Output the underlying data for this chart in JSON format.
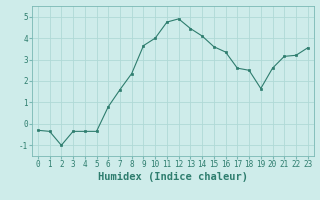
{
  "x": [
    0,
    1,
    2,
    3,
    4,
    5,
    6,
    7,
    8,
    9,
    10,
    11,
    12,
    13,
    14,
    15,
    16,
    17,
    18,
    19,
    20,
    21,
    22,
    23
  ],
  "y": [
    -0.3,
    -0.35,
    -1.0,
    -0.35,
    -0.35,
    -0.35,
    0.8,
    1.6,
    2.35,
    3.65,
    4.0,
    4.75,
    4.9,
    4.45,
    4.1,
    3.6,
    3.35,
    2.6,
    2.5,
    1.65,
    2.6,
    3.15,
    3.2,
    3.55
  ],
  "line_color": "#2e7d6e",
  "marker": "s",
  "marker_size": 2.0,
  "background_color": "#ceecea",
  "grid_color": "#b0d9d6",
  "xlabel": "Humidex (Indice chaleur)",
  "ylim": [
    -1.5,
    5.5
  ],
  "xlim": [
    -0.5,
    23.5
  ],
  "yticks": [
    -1,
    0,
    1,
    2,
    3,
    4,
    5
  ],
  "xticks": [
    0,
    1,
    2,
    3,
    4,
    5,
    6,
    7,
    8,
    9,
    10,
    11,
    12,
    13,
    14,
    15,
    16,
    17,
    18,
    19,
    20,
    21,
    22,
    23
  ],
  "tick_label_fontsize": 5.5,
  "xlabel_fontsize": 7.5,
  "tick_color": "#2e7d6e",
  "label_color": "#2e7d6e",
  "spine_color": "#7ab8b4"
}
